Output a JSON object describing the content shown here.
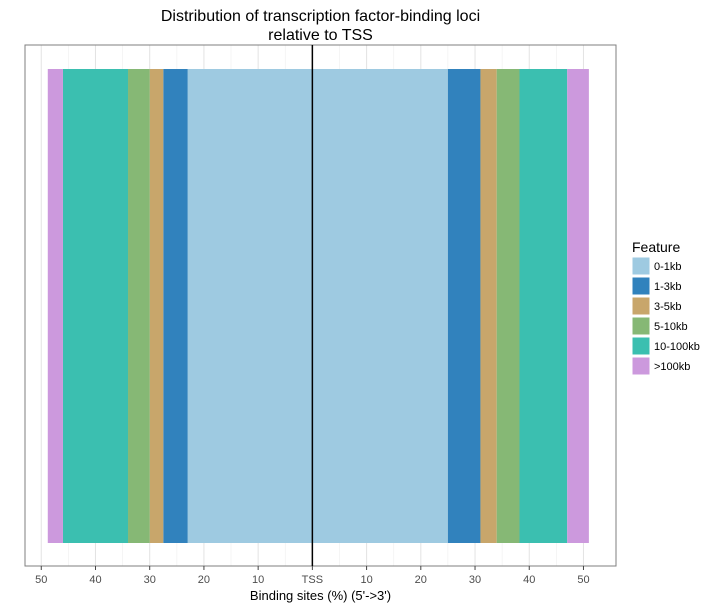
{
  "chart_data": {
    "type": "bar",
    "orientation": "horizontal-stacked-diverging",
    "title": "Distribution of transcription factor-binding loci",
    "subtitle": "relative to TSS",
    "xlabel": "Binding sites (%) (5'->3')",
    "ylabel": "",
    "x_ticks": [
      "50",
      "40",
      "30",
      "20",
      "10",
      "TSS",
      "10",
      "20",
      "30",
      "40",
      "50"
    ],
    "x_tick_values": [
      -50,
      -40,
      -30,
      -20,
      -10,
      0,
      10,
      20,
      30,
      40,
      50
    ],
    "xlim": [
      -53,
      56
    ],
    "grid": true,
    "legend": {
      "title": "Feature",
      "position": "right",
      "entries": [
        "0-1kb",
        "1-3kb",
        "3-5kb",
        "5-10kb",
        "10-100kb",
        ">100kb"
      ]
    },
    "colors": {
      "0-1kb": "#9ecae1",
      "1-3kb": "#3182bd",
      "3-5kb": "#c8a66b",
      "5-10kb": "#86b875",
      "10-100kb": "#3bbfb0",
      ">100kb": "#cc99dd"
    },
    "series": [
      {
        "name": "0-1kb",
        "upstream": 23.0,
        "downstream": 25.0
      },
      {
        "name": "1-3kb",
        "upstream": 4.5,
        "downstream": 6.0
      },
      {
        "name": "3-5kb",
        "upstream": 2.5,
        "downstream": 3.0
      },
      {
        "name": "5-10kb",
        "upstream": 4.0,
        "downstream": 4.2
      },
      {
        "name": "10-100kb",
        "upstream": 12.0,
        "downstream": 8.8
      },
      {
        "name": ">100kb",
        "upstream": 2.8,
        "downstream": 4.0
      }
    ],
    "tss_line": 0
  }
}
